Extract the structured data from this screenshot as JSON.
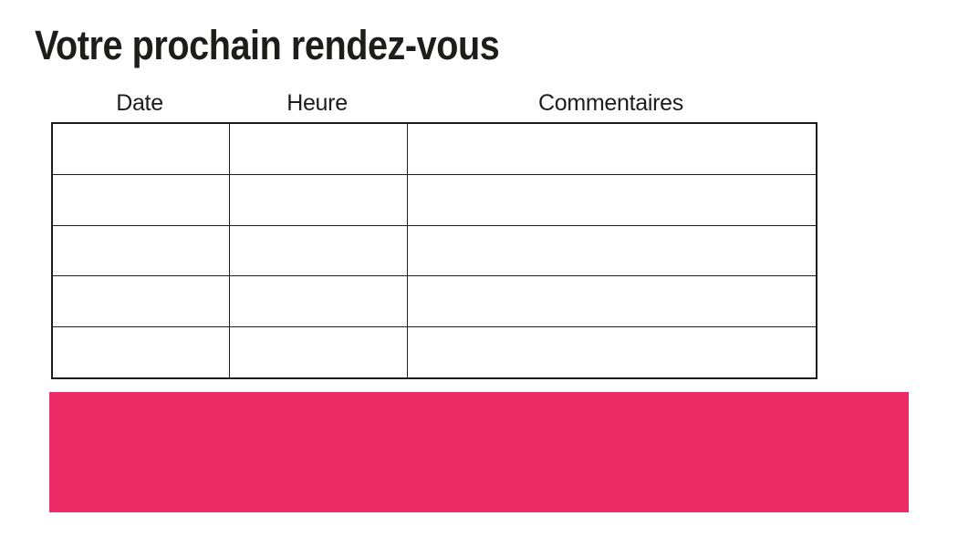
{
  "page": {
    "title": "Votre prochain rendez-vous",
    "background_color": "#ffffff",
    "text_color": "#1d1d1b"
  },
  "table": {
    "columns": [
      {
        "label": "Date"
      },
      {
        "label": "Heure"
      },
      {
        "label": "Commentaires"
      }
    ],
    "rows": [
      [
        "",
        "",
        ""
      ],
      [
        "",
        "",
        ""
      ],
      [
        "",
        "",
        ""
      ],
      [
        "",
        "",
        ""
      ],
      [
        "",
        "",
        ""
      ]
    ],
    "border_color": "#1d1d1b"
  },
  "banner": {
    "color": "#ed2c67",
    "label": ""
  }
}
